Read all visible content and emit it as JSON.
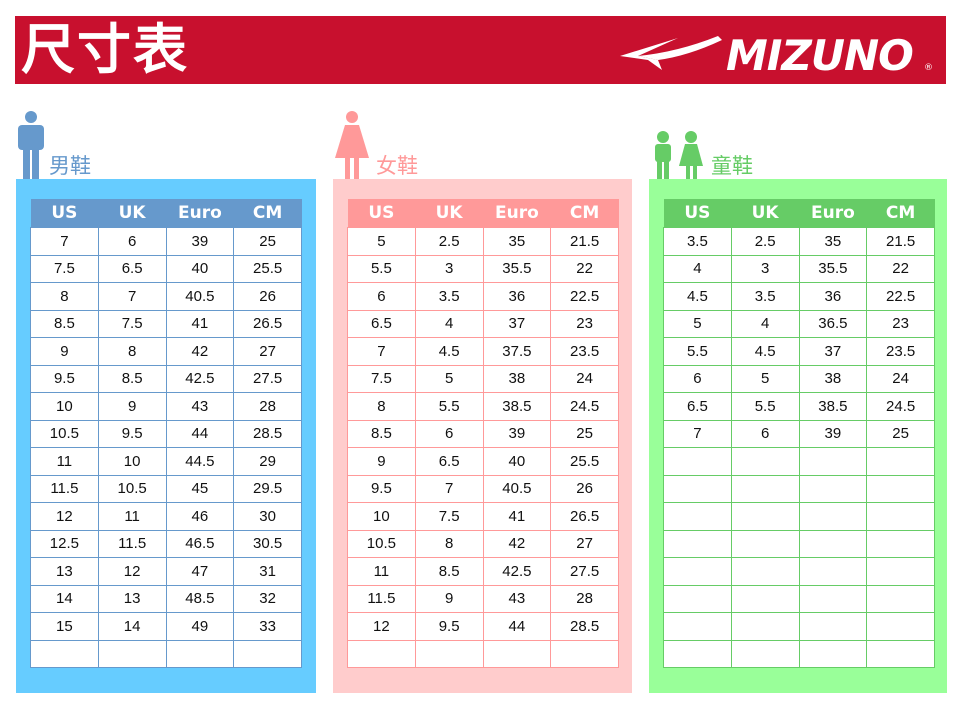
{
  "header": {
    "title": "尺寸表",
    "brand": "MIZUNO"
  },
  "colors": {
    "header": "#c8102e",
    "men_panel": "#66ccff",
    "men_head": "#6699cc",
    "women_panel": "#ffcccc",
    "women_head": "#ff9999",
    "kids_panel": "#99ff99",
    "kids_head": "#66cc66"
  },
  "columns": [
    "US",
    "UK",
    "Euro",
    "CM"
  ],
  "men": {
    "title": "男鞋",
    "icon": "man-icon",
    "rows": [
      [
        "7",
        "6",
        "39",
        "25"
      ],
      [
        "7.5",
        "6.5",
        "40",
        "25.5"
      ],
      [
        "8",
        "7",
        "40.5",
        "26"
      ],
      [
        "8.5",
        "7.5",
        "41",
        "26.5"
      ],
      [
        "9",
        "8",
        "42",
        "27"
      ],
      [
        "9.5",
        "8.5",
        "42.5",
        "27.5"
      ],
      [
        "10",
        "9",
        "43",
        "28"
      ],
      [
        "10.5",
        "9.5",
        "44",
        "28.5"
      ],
      [
        "11",
        "10",
        "44.5",
        "29"
      ],
      [
        "11.5",
        "10.5",
        "45",
        "29.5"
      ],
      [
        "12",
        "11",
        "46",
        "30"
      ],
      [
        "12.5",
        "11.5",
        "46.5",
        "30.5"
      ],
      [
        "13",
        "12",
        "47",
        "31"
      ],
      [
        "14",
        "13",
        "48.5",
        "32"
      ],
      [
        "15",
        "14",
        "49",
        "33"
      ]
    ]
  },
  "women": {
    "title": "女鞋",
    "icon": "woman-icon",
    "rows": [
      [
        "5",
        "2.5",
        "35",
        "21.5"
      ],
      [
        "5.5",
        "3",
        "35.5",
        "22"
      ],
      [
        "6",
        "3.5",
        "36",
        "22.5"
      ],
      [
        "6.5",
        "4",
        "37",
        "23"
      ],
      [
        "7",
        "4.5",
        "37.5",
        "23.5"
      ],
      [
        "7.5",
        "5",
        "38",
        "24"
      ],
      [
        "8",
        "5.5",
        "38.5",
        "24.5"
      ],
      [
        "8.5",
        "6",
        "39",
        "25"
      ],
      [
        "9",
        "6.5",
        "40",
        "25.5"
      ],
      [
        "9.5",
        "7",
        "40.5",
        "26"
      ],
      [
        "10",
        "7.5",
        "41",
        "26.5"
      ],
      [
        "10.5",
        "8",
        "42",
        "27"
      ],
      [
        "11",
        "8.5",
        "42.5",
        "27.5"
      ],
      [
        "11.5",
        "9",
        "43",
        "28"
      ],
      [
        "12",
        "9.5",
        "44",
        "28.5"
      ]
    ]
  },
  "kids": {
    "title": "童鞋",
    "icon": "children-icon",
    "rows": [
      [
        "3.5",
        "2.5",
        "35",
        "21.5"
      ],
      [
        "4",
        "3",
        "35.5",
        "22"
      ],
      [
        "4.5",
        "3.5",
        "36",
        "22.5"
      ],
      [
        "5",
        "4",
        "36.5",
        "23"
      ],
      [
        "5.5",
        "4.5",
        "37",
        "23.5"
      ],
      [
        "6",
        "5",
        "38",
        "24"
      ],
      [
        "6.5",
        "5.5",
        "38.5",
        "24.5"
      ],
      [
        "7",
        "6",
        "39",
        "25"
      ]
    ]
  }
}
